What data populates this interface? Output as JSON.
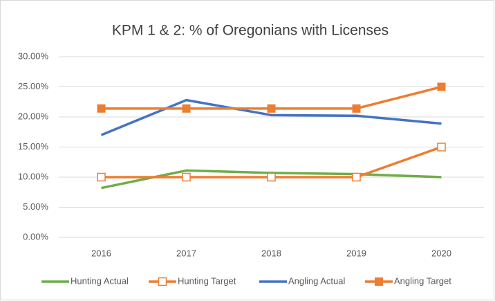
{
  "chart_data": {
    "type": "line",
    "title": "KPM 1 & 2: % of Oregonians with Licenses",
    "categories": [
      "2016",
      "2017",
      "2018",
      "2019",
      "2020"
    ],
    "series": [
      {
        "name": "Hunting Actual",
        "color": "#70ad47",
        "marker": "none",
        "values": [
          8.2,
          11.1,
          10.7,
          10.5,
          10.0
        ]
      },
      {
        "name": "Hunting Target",
        "color": "#ed7d31",
        "marker": "square-open",
        "values": [
          10,
          10,
          10,
          10,
          15
        ]
      },
      {
        "name": "Angling Actual",
        "color": "#4472c4",
        "marker": "none",
        "values": [
          17.0,
          22.8,
          20.3,
          20.2,
          18.9
        ]
      },
      {
        "name": "Angling Target",
        "color": "#ed7d31",
        "marker": "square",
        "values": [
          21.4,
          21.4,
          21.4,
          21.4,
          25.0
        ]
      }
    ],
    "ylim": [
      0,
      30
    ],
    "yticks": [
      {
        "value": 0,
        "label": "0.00%"
      },
      {
        "value": 5,
        "label": "5.00%"
      },
      {
        "value": 10,
        "label": "10.00%"
      },
      {
        "value": 15,
        "label": "15.00%"
      },
      {
        "value": 20,
        "label": "20.00%"
      },
      {
        "value": 25,
        "label": "25.00%"
      },
      {
        "value": 30,
        "label": "30.00%"
      }
    ],
    "grid": true,
    "legend": "bottom"
  }
}
